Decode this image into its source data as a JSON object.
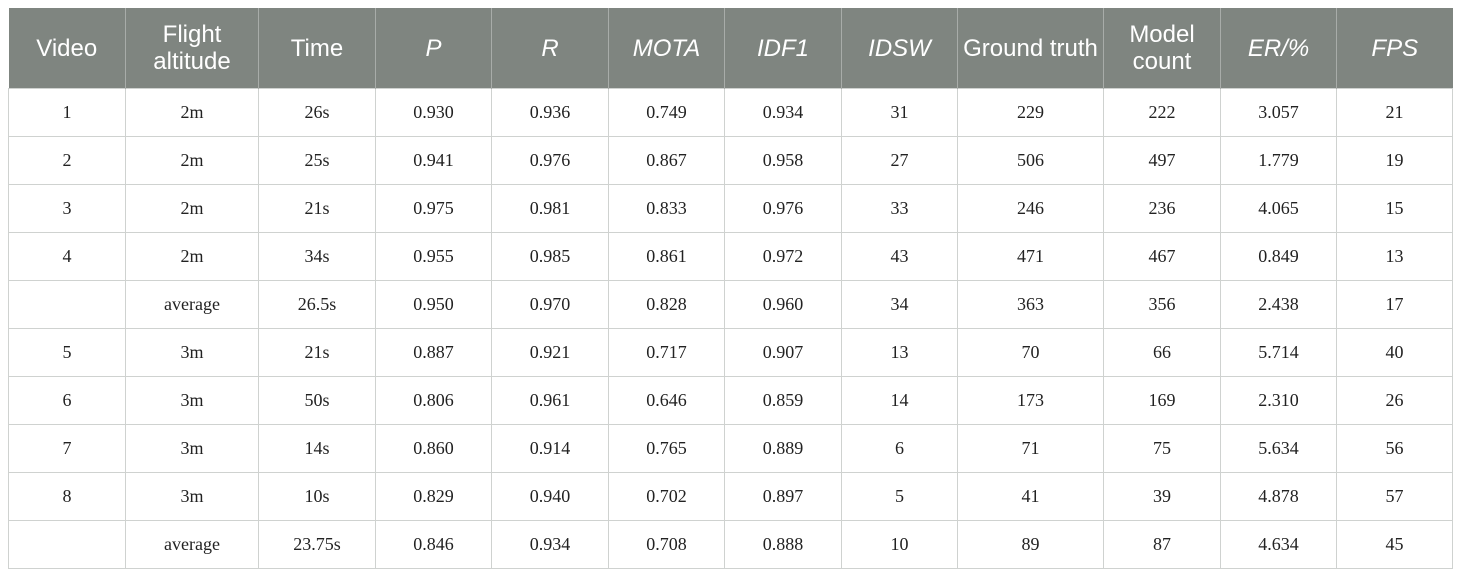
{
  "table": {
    "headers": [
      "Video",
      "Flight altitude",
      "Time",
      "P",
      "R",
      "MOTA",
      "IDF1",
      "IDSW",
      "Ground truth",
      "Model count",
      "ER/%",
      "FPS"
    ],
    "rows": [
      [
        "1",
        "2m",
        "26s",
        "0.930",
        "0.936",
        "0.749",
        "0.934",
        "31",
        "229",
        "222",
        "3.057",
        "21"
      ],
      [
        "2",
        "2m",
        "25s",
        "0.941",
        "0.976",
        "0.867",
        "0.958",
        "27",
        "506",
        "497",
        "1.779",
        "19"
      ],
      [
        "3",
        "2m",
        "21s",
        "0.975",
        "0.981",
        "0.833",
        "0.976",
        "33",
        "246",
        "236",
        "4.065",
        "15"
      ],
      [
        "4",
        "2m",
        "34s",
        "0.955",
        "0.985",
        "0.861",
        "0.972",
        "43",
        "471",
        "467",
        "0.849",
        "13"
      ],
      [
        "",
        "average",
        "26.5s",
        "0.950",
        "0.970",
        "0.828",
        "0.960",
        "34",
        "363",
        "356",
        "2.438",
        "17"
      ],
      [
        "5",
        "3m",
        "21s",
        "0.887",
        "0.921",
        "0.717",
        "0.907",
        "13",
        "70",
        "66",
        "5.714",
        "40"
      ],
      [
        "6",
        "3m",
        "50s",
        "0.806",
        "0.961",
        "0.646",
        "0.859",
        "14",
        "173",
        "169",
        "2.310",
        "26"
      ],
      [
        "7",
        "3m",
        "14s",
        "0.860",
        "0.914",
        "0.765",
        "0.889",
        "6",
        "71",
        "75",
        "5.634",
        "56"
      ],
      [
        "8",
        "3m",
        "10s",
        "0.829",
        "0.940",
        "0.702",
        "0.897",
        "5",
        "41",
        "39",
        "4.878",
        "57"
      ],
      [
        "",
        "average",
        "23.75s",
        "0.846",
        "0.934",
        "0.708",
        "0.888",
        "10",
        "89",
        "87",
        "4.634",
        "45"
      ]
    ]
  },
  "colors": {
    "header_background": "#7f8580",
    "header_text": "#ffffff",
    "grid_lines": "#cfd2d0"
  }
}
